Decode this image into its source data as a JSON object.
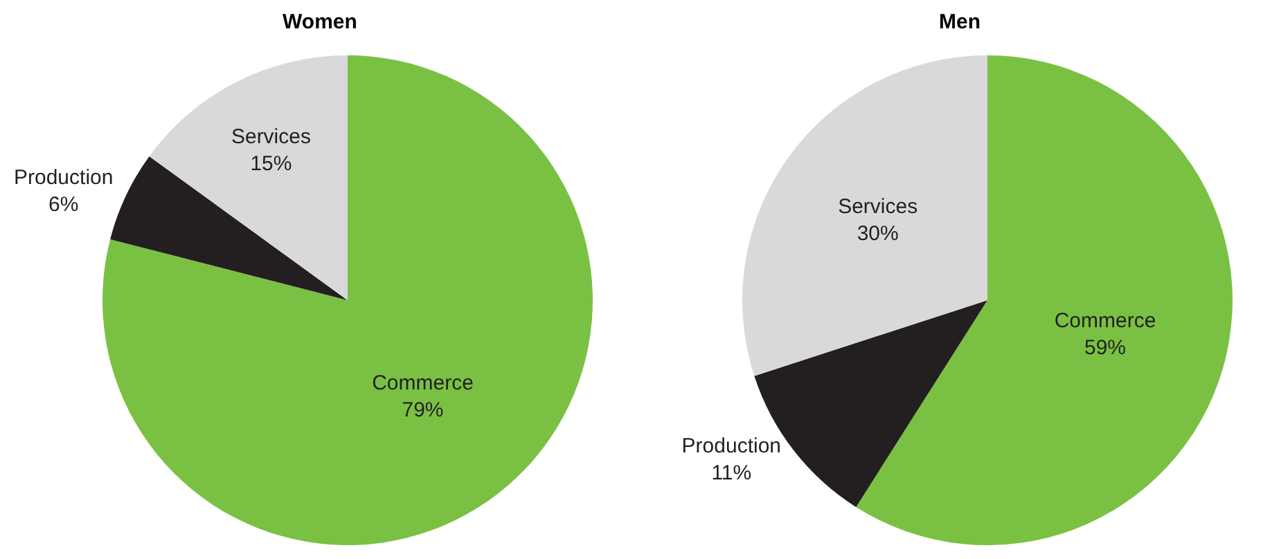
{
  "chart_data": [
    {
      "type": "pie",
      "title": "Women",
      "categories": [
        "Commerce",
        "Production",
        "Services"
      ],
      "values": [
        79,
        6,
        15
      ],
      "value_labels": [
        "79%",
        "6%",
        "15%"
      ],
      "colors": [
        "#7ac143",
        "#231f20",
        "#d9d9db"
      ],
      "legend": false
    },
    {
      "type": "pie",
      "title": "Men",
      "categories": [
        "Commerce",
        "Production",
        "Services"
      ],
      "values": [
        59,
        11,
        30
      ],
      "value_labels": [
        "59%",
        "11%",
        "30%"
      ],
      "colors": [
        "#7ac143",
        "#231f20",
        "#d9d9db"
      ],
      "legend": false
    }
  ]
}
